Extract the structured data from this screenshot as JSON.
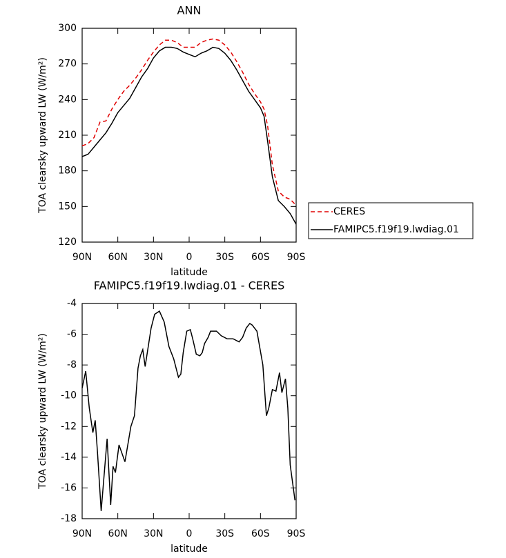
{
  "chart_data": [
    {
      "type": "line",
      "title": "ANN",
      "xlabel": "latitude",
      "ylabel": "TOA clearsky upward LW (W/m²)",
      "x": [
        90,
        85,
        80,
        75,
        70,
        65,
        60,
        55,
        50,
        45,
        40,
        35,
        30,
        25,
        20,
        15,
        10,
        5,
        0,
        -5,
        -10,
        -15,
        -20,
        -25,
        -30,
        -35,
        -40,
        -45,
        -50,
        -55,
        -60,
        -63,
        -66,
        -70,
        -75,
        -80,
        -85,
        -90
      ],
      "xlim": [
        90,
        -90
      ],
      "xticks": [
        {
          "value": 90,
          "label": "90N"
        },
        {
          "value": 60,
          "label": "60N"
        },
        {
          "value": 30,
          "label": "30N"
        },
        0,
        {
          "value": -30,
          "label": "30S"
        },
        {
          "value": -60,
          "label": "60S"
        },
        {
          "value": -90,
          "label": "90S"
        }
      ],
      "ylim": [
        120,
        300
      ],
      "yticks": [
        120,
        150,
        180,
        210,
        240,
        270,
        300
      ],
      "legend": "right",
      "series": [
        {
          "name": "CERES",
          "color": "#e00000",
          "dashed": true,
          "values": [
            201,
            203,
            208,
            221,
            222,
            232,
            240,
            247,
            252,
            258,
            265,
            273,
            280,
            286,
            290,
            290,
            288,
            284,
            284,
            284,
            288,
            290,
            291,
            290,
            286,
            280,
            272,
            263,
            253,
            245,
            238,
            232,
            218,
            185,
            163,
            158,
            156,
            151
          ]
        },
        {
          "name": "FAMIPC5.f19f19.lwdiag.01",
          "color": "#000000",
          "dashed": false,
          "values": [
            192,
            194,
            200,
            206,
            212,
            220,
            229,
            235,
            241,
            250,
            259,
            266,
            275,
            281,
            284,
            284,
            283,
            280,
            278,
            276,
            279,
            281,
            284,
            283,
            279,
            273,
            265,
            256,
            247,
            240,
            233,
            226,
            205,
            175,
            155,
            150,
            144,
            135
          ]
        }
      ]
    },
    {
      "type": "line",
      "title": "FAMIPC5.f19f19.lwdiag.01 - CERES",
      "xlabel": "latitude",
      "ylabel": "TOA clearsky upward LW (W/m²)",
      "x": [
        90,
        87,
        84,
        81,
        79,
        77,
        74,
        69,
        66,
        64,
        62,
        59,
        54,
        49,
        46,
        43,
        41,
        39,
        37,
        32,
        29,
        25,
        21,
        17,
        13,
        12,
        9,
        7,
        5,
        2,
        -1,
        -3,
        -6,
        -9,
        -11,
        -13,
        -16,
        -18,
        -23,
        -27,
        -32,
        -37,
        -42,
        -45,
        -48,
        -51,
        -53,
        -57,
        -62,
        -65,
        -67,
        -70,
        -73,
        -76,
        -78,
        -81,
        -83,
        -85,
        -89
      ],
      "xlim": [
        90,
        -90
      ],
      "xticks": [
        {
          "value": 90,
          "label": "90N"
        },
        {
          "value": 60,
          "label": "60N"
        },
        {
          "value": 30,
          "label": "30N"
        },
        0,
        {
          "value": -30,
          "label": "30S"
        },
        {
          "value": -60,
          "label": "60S"
        },
        {
          "value": -90,
          "label": "90S"
        }
      ],
      "ylim": [
        -18,
        -4
      ],
      "yticks": [
        -18,
        -16,
        -14,
        -12,
        -10,
        -8,
        -6,
        -4
      ],
      "series": [
        {
          "color": "#000000",
          "dashed": false,
          "values": [
            -9.5,
            -8.4,
            -10.8,
            -12.4,
            -11.6,
            -13.8,
            -17.5,
            -12.8,
            -17.1,
            -14.6,
            -15.0,
            -13.2,
            -14.3,
            -12.0,
            -11.3,
            -8.2,
            -7.4,
            -7.0,
            -8.1,
            -5.6,
            -4.7,
            -4.5,
            -5.2,
            -6.8,
            -7.6,
            -7.9,
            -8.8,
            -8.6,
            -7.2,
            -5.8,
            -5.7,
            -6.3,
            -7.3,
            -7.4,
            -7.2,
            -6.6,
            -6.2,
            -5.8,
            -5.8,
            -6.1,
            -6.3,
            -6.3,
            -6.5,
            -6.2,
            -5.6,
            -5.3,
            -5.4,
            -5.8,
            -8.0,
            -11.3,
            -10.8,
            -9.6,
            -9.7,
            -8.5,
            -9.8,
            -8.9,
            -10.8,
            -14.5,
            -16.8
          ]
        }
      ]
    }
  ]
}
